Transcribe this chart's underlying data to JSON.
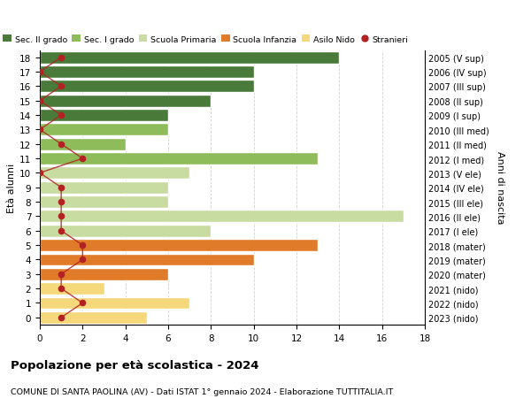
{
  "ages": [
    0,
    1,
    2,
    3,
    4,
    5,
    6,
    7,
    8,
    9,
    10,
    11,
    12,
    13,
    14,
    15,
    16,
    17,
    18
  ],
  "right_labels": [
    "2023 (nido)",
    "2022 (nido)",
    "2021 (nido)",
    "2020 (mater)",
    "2019 (mater)",
    "2018 (mater)",
    "2017 (I ele)",
    "2016 (II ele)",
    "2015 (III ele)",
    "2014 (IV ele)",
    "2013 (V ele)",
    "2012 (I med)",
    "2011 (II med)",
    "2010 (III med)",
    "2009 (I sup)",
    "2008 (II sup)",
    "2007 (III sup)",
    "2006 (IV sup)",
    "2005 (V sup)"
  ],
  "bar_values": [
    5,
    7,
    3,
    6,
    10,
    13,
    8,
    17,
    6,
    6,
    7,
    13,
    4,
    6,
    6,
    8,
    10,
    10,
    14
  ],
  "bar_colors": [
    "#f5d87a",
    "#f5d87a",
    "#f5d87a",
    "#e07b2a",
    "#e07b2a",
    "#e07b2a",
    "#c8dba0",
    "#c8dba0",
    "#c8dba0",
    "#c8dba0",
    "#c8dba0",
    "#8fbc5a",
    "#8fbc5a",
    "#8fbc5a",
    "#4a7a3a",
    "#4a7a3a",
    "#4a7a3a",
    "#4a7a3a",
    "#4a7a3a"
  ],
  "stranieri_values": [
    1,
    2,
    1,
    1,
    2,
    2,
    1,
    1,
    1,
    1,
    0,
    2,
    1,
    0,
    1,
    0,
    1,
    0,
    1
  ],
  "legend_labels": [
    "Sec. II grado",
    "Sec. I grado",
    "Scuola Primaria",
    "Scuola Infanzia",
    "Asilo Nido",
    "Stranieri"
  ],
  "legend_colors": [
    "#4a7a3a",
    "#8fbc5a",
    "#c8dba0",
    "#e07b2a",
    "#f5d87a",
    "#b22222"
  ],
  "ylabel_left": "Età alunni",
  "ylabel_right": "Anni di nascita",
  "xlim": [
    0,
    18
  ],
  "title": "Popolazione per età scolastica - 2024",
  "subtitle": "COMUNE DI SANTA PAOLINA (AV) - Dati ISTAT 1° gennaio 2024 - Elaborazione TUTTITALIA.IT",
  "bg_color": "#ffffff",
  "grid_color": "#d0d0d0"
}
